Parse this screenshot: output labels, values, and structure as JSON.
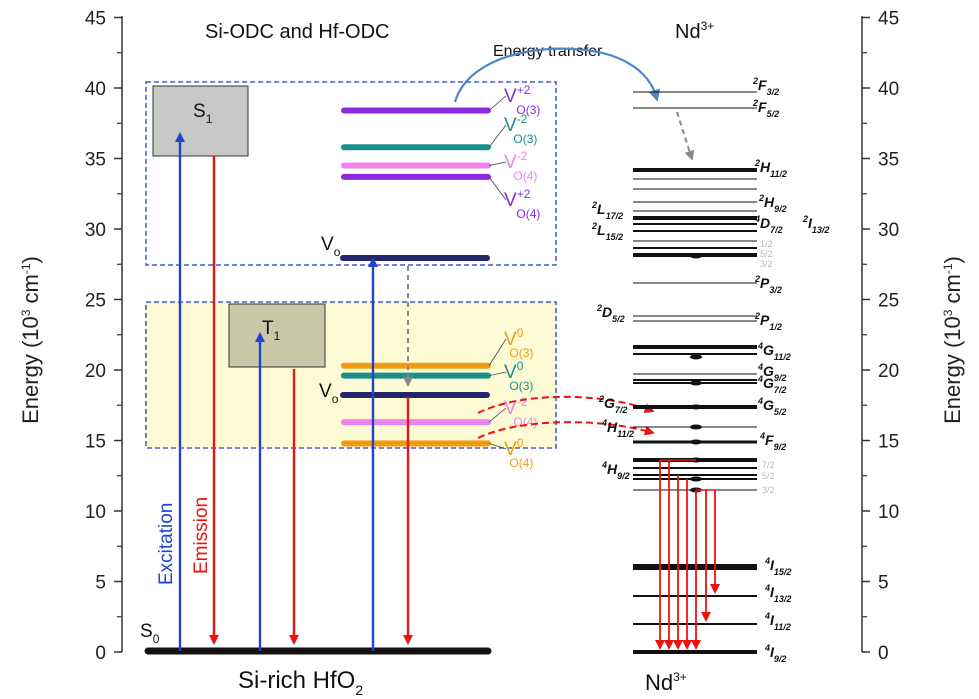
{
  "axes": {
    "left_title": "Energy (10",
    "left_title_sup": "3",
    "left_title_unit": " cm",
    "left_title_unit_sup": "-1",
    "left_title_close": ")",
    "right_title": "Energy (10",
    "right_title_sup": "3",
    "right_title_unit": " cm",
    "right_title_unit_sup": "-1",
    "right_title_close": ")",
    "ticks": [
      "0",
      "5",
      "10",
      "15",
      "20",
      "25",
      "30",
      "35",
      "40",
      "45"
    ]
  },
  "headers": {
    "left": "Si-ODC and Hf-ODC",
    "energy_transfer": "Energy transfer",
    "nd_top": "Nd",
    "nd_top_sup": "3+",
    "nd_bottom": "Nd",
    "nd_bottom_sup": "3+",
    "si_rich": "Si-rich HfO",
    "si_rich_sub": "2"
  },
  "states": {
    "s1": "S",
    "s1_sub": "1",
    "t1": "T",
    "t1_sub": "1",
    "s0": "S",
    "s0_sub": "0",
    "vo_upper": "V",
    "vo_upper_sub": "o",
    "vo_lower": "V",
    "vo_lower_sub": "o"
  },
  "arrows": {
    "excitation": "Excitation",
    "emission": "Emission"
  },
  "vo_levels": [
    {
      "base": "V",
      "sup": "+2",
      "sub": "O(3)",
      "color": "#8a2be2",
      "energy": 38.4
    },
    {
      "base": "V",
      "sup": "-2",
      "sub": "O(3)",
      "color": "#1a9088",
      "energy": 35.8
    },
    {
      "base": "V",
      "sup": "-2",
      "sub": "O(4)",
      "color": "#ee82ee",
      "energy": 34.5
    },
    {
      "base": "V",
      "sup": "+2",
      "sub": "O(4)",
      "color": "#8a2be2",
      "energy": 33.7
    },
    {
      "base": "V",
      "sup": "0",
      "sub": "O(3)",
      "color": "#f39c12",
      "energy": 20.3
    },
    {
      "base": "V",
      "sup": "0",
      "sub": "O(3)",
      "color": "#1a9088",
      "energy": 19.6
    },
    {
      "base": "V",
      "sup": "-2",
      "sub": "O(4)",
      "color": "#ee82ee",
      "energy": 16.3
    },
    {
      "base": "V",
      "sup": "0",
      "sub": "O(4)",
      "color": "#f39c12",
      "energy": 14.8
    }
  ],
  "nd_labels": {
    "f32": {
      "pre": "2",
      "base": "F",
      "sub": "3/2"
    },
    "f52": {
      "pre": "2",
      "base": "F",
      "sub": "5/2"
    },
    "h112_top": {
      "pre": "2",
      "base": "H",
      "sub": "11/2"
    },
    "h92_top": {
      "pre": "2",
      "base": "H",
      "sub": "9/2"
    },
    "l172": {
      "pre": "2",
      "base": "L",
      "sub": "17/2"
    },
    "l152": {
      "pre": "2",
      "base": "L",
      "sub": "15/2"
    },
    "d72": {
      "pre": "4",
      "base": "D",
      "sub": "7/2"
    },
    "i132_top": {
      "pre": "2",
      "base": "I",
      "sub": "13/2"
    },
    "d_sub_12": "1/2",
    "d_sub_52": "5/2",
    "d_sub_32": "3/2",
    "p32": {
      "pre": "2",
      "base": "P",
      "sub": "3/2"
    },
    "d52": {
      "pre": "2",
      "base": "D",
      "sub": "5/2"
    },
    "p12": {
      "pre": "2",
      "base": "P",
      "sub": "1/2"
    },
    "g112": {
      "pre": "4",
      "base": "G",
      "sub": "11/2"
    },
    "g92": {
      "pre": "4",
      "base": "G",
      "sub": "9/2"
    },
    "g72": {
      "pre": "4",
      "base": "G",
      "sub": "7/2"
    },
    "g52": {
      "pre": "4",
      "base": "G",
      "sub": "5/2"
    },
    "g72_left": {
      "pre": "2",
      "base": "G",
      "sub": "7/2"
    },
    "h112": {
      "pre": "4",
      "base": "H",
      "sub": "11/2"
    },
    "f92": {
      "pre": "4",
      "base": "F",
      "sub": "9/2"
    },
    "f_sub_72": "7/2",
    "f_sub_52": "5/2",
    "f_sub_32": "3/2",
    "h92": {
      "pre": "4",
      "base": "H",
      "sub": "9/2"
    },
    "i152": {
      "pre": "4",
      "base": "I",
      "sub": "15/2"
    },
    "i132": {
      "pre": "4",
      "base": "I",
      "sub": "13/2"
    },
    "i112": {
      "pre": "4",
      "base": "I",
      "sub": "11/2"
    },
    "i92": {
      "pre": "4",
      "base": "I",
      "sub": "9/2"
    }
  },
  "colors": {
    "excitation": "#2244cc",
    "emission": "#ee1111",
    "box_border": "#1f3fbf",
    "lower_fill": "#fdfbd6",
    "state_box": "#c8cbc8",
    "t_box": "#c9c9a9",
    "vo_dark": "#26276b"
  }
}
